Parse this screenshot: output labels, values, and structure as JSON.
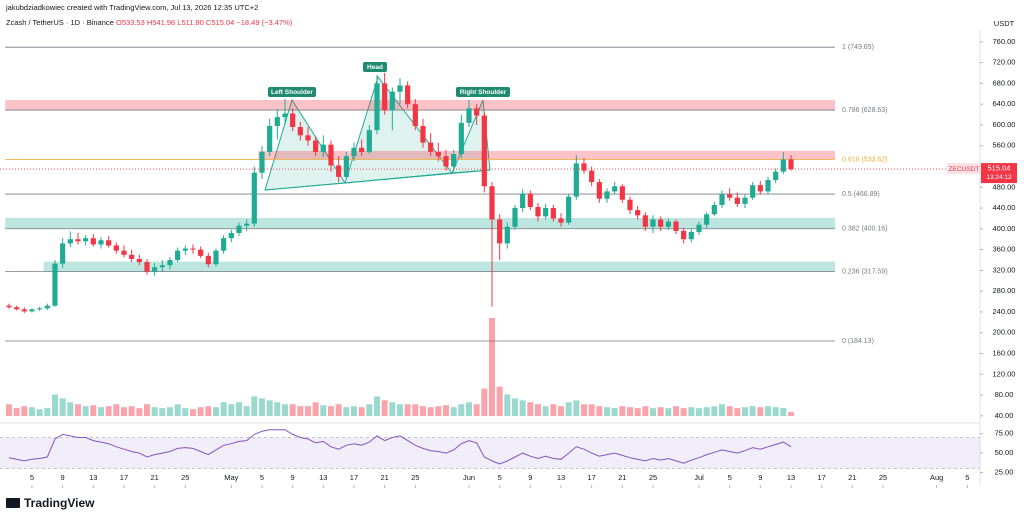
{
  "chart_data": {
    "type": "candlestick",
    "author_line": "jakubdziadkowiec created with TradingView.com, Jul 13, 2026 12:35 UTC+2",
    "symbol_line": "Zcash / TetherUS · 1D · Binance",
    "ohlc_line": "O533.53 H541.96 L511.80 C515.04 −18.49 (−3.47%)",
    "currency": "USDT",
    "symbol": "ZECUSDT",
    "last_price": 515.04,
    "last_price_label": "515.04",
    "countdown": "13:24:12",
    "brand": "TradingView",
    "up_color": "#22ab94",
    "down_color": "#f23645",
    "ylim": [
      32,
      802
    ],
    "yticks": [
      {
        "value": 760,
        "label": "760.00"
      },
      {
        "value": 720,
        "label": "720.00"
      },
      {
        "value": 680,
        "label": "680.00"
      },
      {
        "value": 640,
        "label": "640.00"
      },
      {
        "value": 600,
        "label": "600.00"
      },
      {
        "value": 560,
        "label": "560.00"
      },
      {
        "value": 480,
        "label": "480.00"
      },
      {
        "value": 440,
        "label": "440.00"
      },
      {
        "value": 400,
        "label": "400.00"
      },
      {
        "value": 360,
        "label": "360.00"
      },
      {
        "value": 320,
        "label": "320.00"
      },
      {
        "value": 280,
        "label": "280.00"
      },
      {
        "value": 240,
        "label": "240.00"
      },
      {
        "value": 200,
        "label": "200.00"
      },
      {
        "value": 160,
        "label": "160.00"
      },
      {
        "value": 120,
        "label": "120.00"
      },
      {
        "value": 80,
        "label": "80.00"
      },
      {
        "value": 40,
        "label": "40.00"
      }
    ],
    "xticks": [
      {
        "value": 4,
        "label": "5"
      },
      {
        "value": 8,
        "label": "9"
      },
      {
        "value": 12,
        "label": "13"
      },
      {
        "value": 16,
        "label": "17"
      },
      {
        "value": 20,
        "label": "21"
      },
      {
        "value": 24,
        "label": "25"
      },
      {
        "value": 30,
        "label": "May"
      },
      {
        "value": 34,
        "label": "5"
      },
      {
        "value": 38,
        "label": "9"
      },
      {
        "value": 42,
        "label": "13"
      },
      {
        "value": 46,
        "label": "17"
      },
      {
        "value": 50,
        "label": "21"
      },
      {
        "value": 54,
        "label": "25"
      },
      {
        "value": 61,
        "label": "Jun"
      },
      {
        "value": 65,
        "label": "5"
      },
      {
        "value": 69,
        "label": "9"
      },
      {
        "value": 73,
        "label": "13"
      },
      {
        "value": 77,
        "label": "17"
      },
      {
        "value": 81,
        "label": "21"
      },
      {
        "value": 85,
        "label": "25"
      },
      {
        "value": 91,
        "label": "Jul"
      },
      {
        "value": 95,
        "label": "5"
      },
      {
        "value": 99,
        "label": "9"
      },
      {
        "value": 103,
        "label": "13"
      },
      {
        "value": 107,
        "label": "17"
      },
      {
        "value": 111,
        "label": "21"
      },
      {
        "value": 115,
        "label": "25"
      },
      {
        "value": 122,
        "label": "Aug"
      },
      {
        "value": 126,
        "label": "5"
      }
    ],
    "candles": [
      [
        252,
        256,
        246,
        249
      ],
      [
        249,
        252,
        243,
        245
      ],
      [
        245,
        249,
        238,
        241
      ],
      [
        241,
        247,
        239,
        245
      ],
      [
        245,
        250,
        242,
        247
      ],
      [
        247,
        256,
        244,
        252
      ],
      [
        252,
        340,
        250,
        333
      ],
      [
        333,
        382,
        325,
        372
      ],
      [
        372,
        395,
        365,
        380
      ],
      [
        380,
        392,
        370,
        376
      ],
      [
        376,
        388,
        368,
        382
      ],
      [
        382,
        390,
        366,
        370
      ],
      [
        370,
        384,
        362,
        378
      ],
      [
        378,
        386,
        364,
        368
      ],
      [
        368,
        374,
        352,
        358
      ],
      [
        358,
        368,
        345,
        350
      ],
      [
        350,
        360,
        336,
        342
      ],
      [
        342,
        350,
        330,
        336
      ],
      [
        336,
        342,
        312,
        318
      ],
      [
        318,
        334,
        310,
        326
      ],
      [
        326,
        340,
        318,
        330
      ],
      [
        330,
        346,
        322,
        340
      ],
      [
        340,
        364,
        336,
        358
      ],
      [
        358,
        368,
        350,
        362
      ],
      [
        362,
        370,
        352,
        360
      ],
      [
        360,
        366,
        344,
        348
      ],
      [
        348,
        354,
        326,
        332
      ],
      [
        332,
        362,
        328,
        358
      ],
      [
        358,
        388,
        352,
        382
      ],
      [
        382,
        398,
        374,
        392
      ],
      [
        392,
        412,
        386,
        406
      ],
      [
        406,
        418,
        396,
        410
      ],
      [
        410,
        520,
        404,
        508
      ],
      [
        508,
        560,
        496,
        548
      ],
      [
        548,
        612,
        540,
        598
      ],
      [
        598,
        630,
        572,
        615
      ],
      [
        615,
        650,
        600,
        622
      ],
      [
        622,
        632,
        588,
        596
      ],
      [
        596,
        606,
        570,
        580
      ],
      [
        580,
        596,
        560,
        570
      ],
      [
        570,
        578,
        540,
        548
      ],
      [
        548,
        580,
        538,
        562
      ],
      [
        562,
        570,
        510,
        522
      ],
      [
        522,
        540,
        490,
        500
      ],
      [
        500,
        548,
        496,
        540
      ],
      [
        540,
        566,
        530,
        556
      ],
      [
        556,
        572,
        540,
        548
      ],
      [
        548,
        600,
        544,
        590
      ],
      [
        590,
        696,
        582,
        680
      ],
      [
        680,
        700,
        620,
        628
      ],
      [
        628,
        672,
        590,
        664
      ],
      [
        664,
        690,
        640,
        676
      ],
      [
        676,
        684,
        632,
        640
      ],
      [
        640,
        650,
        590,
        598
      ],
      [
        598,
        612,
        556,
        566
      ],
      [
        566,
        584,
        540,
        548
      ],
      [
        548,
        566,
        530,
        540
      ],
      [
        540,
        552,
        512,
        520
      ],
      [
        520,
        552,
        510,
        544
      ],
      [
        544,
        620,
        536,
        604
      ],
      [
        604,
        648,
        596,
        632
      ],
      [
        632,
        640,
        600,
        618
      ],
      [
        618,
        624,
        470,
        482
      ],
      [
        482,
        490,
        250,
        418
      ],
      [
        418,
        428,
        340,
        372
      ],
      [
        372,
        412,
        362,
        404
      ],
      [
        404,
        446,
        398,
        440
      ],
      [
        440,
        476,
        432,
        468
      ],
      [
        468,
        474,
        436,
        442
      ],
      [
        442,
        450,
        414,
        424
      ],
      [
        424,
        448,
        418,
        440
      ],
      [
        440,
        446,
        414,
        420
      ],
      [
        420,
        430,
        404,
        412
      ],
      [
        412,
        468,
        408,
        462
      ],
      [
        462,
        542,
        456,
        526
      ],
      [
        526,
        536,
        506,
        512
      ],
      [
        512,
        520,
        482,
        490
      ],
      [
        490,
        496,
        450,
        458
      ],
      [
        458,
        478,
        450,
        472
      ],
      [
        472,
        490,
        466,
        482
      ],
      [
        482,
        486,
        450,
        456
      ],
      [
        456,
        462,
        428,
        436
      ],
      [
        436,
        444,
        418,
        426
      ],
      [
        426,
        432,
        396,
        404
      ],
      [
        404,
        426,
        392,
        418
      ],
      [
        418,
        424,
        396,
        404
      ],
      [
        404,
        420,
        398,
        414
      ],
      [
        414,
        418,
        390,
        396
      ],
      [
        396,
        402,
        372,
        380
      ],
      [
        380,
        400,
        374,
        394
      ],
      [
        394,
        414,
        388,
        408
      ],
      [
        408,
        432,
        402,
        428
      ],
      [
        428,
        452,
        424,
        446
      ],
      [
        446,
        474,
        440,
        466
      ],
      [
        466,
        478,
        454,
        460
      ],
      [
        460,
        470,
        442,
        448
      ],
      [
        448,
        466,
        440,
        460
      ],
      [
        460,
        490,
        456,
        484
      ],
      [
        484,
        492,
        466,
        472
      ],
      [
        472,
        500,
        468,
        494
      ],
      [
        494,
        516,
        488,
        510
      ],
      [
        510,
        548,
        506,
        533.53
      ],
      [
        533.53,
        541.96,
        511.8,
        515.04
      ]
    ],
    "volume": [
      12,
      8,
      10,
      9,
      7,
      8,
      22,
      18,
      14,
      12,
      10,
      11,
      9,
      10,
      12,
      9,
      10,
      8,
      12,
      9,
      8,
      9,
      12,
      8,
      7,
      9,
      10,
      9,
      14,
      12,
      14,
      10,
      20,
      18,
      16,
      14,
      12,
      12,
      10,
      10,
      14,
      11,
      10,
      12,
      9,
      10,
      9,
      12,
      20,
      16,
      14,
      12,
      12,
      12,
      10,
      9,
      10,
      11,
      9,
      12,
      14,
      12,
      28,
      100,
      30,
      22,
      18,
      16,
      14,
      12,
      10,
      12,
      10,
      14,
      16,
      12,
      12,
      10,
      9,
      8,
      10,
      9,
      8,
      10,
      8,
      9,
      8,
      10,
      8,
      9,
      8,
      9,
      10,
      12,
      10,
      8,
      9,
      10,
      9,
      10,
      9,
      8,
      4
    ],
    "rsi": [
      44,
      42,
      40,
      42,
      43,
      45,
      68,
      74,
      72,
      70,
      70,
      66,
      64,
      62,
      58,
      55,
      52,
      50,
      45,
      48,
      50,
      52,
      56,
      57,
      56,
      52,
      48,
      54,
      60,
      62,
      65,
      66,
      74,
      78,
      80,
      80,
      80,
      74,
      70,
      68,
      63,
      65,
      58,
      55,
      60,
      62,
      60,
      64,
      72,
      66,
      70,
      72,
      66,
      60,
      56,
      53,
      52,
      50,
      54,
      62,
      66,
      63,
      45,
      40,
      36,
      40,
      45,
      50,
      46,
      43,
      46,
      43,
      42,
      50,
      58,
      55,
      50,
      46,
      48,
      50,
      47,
      44,
      42,
      40,
      43,
      41,
      43,
      40,
      37,
      41,
      44,
      48,
      51,
      54,
      52,
      50,
      53,
      57,
      55,
      58,
      61,
      64,
      58
    ],
    "rsi_color": "#7e57c2",
    "rsi_ylim": [
      18,
      86
    ],
    "rsi_band": [
      30,
      70
    ],
    "rsi_yticks": [
      {
        "value": 75,
        "label": "75.00"
      },
      {
        "value": 50,
        "label": "50.00"
      },
      {
        "value": 25,
        "label": "25.00"
      }
    ],
    "fib_levels": [
      {
        "price": 749.65,
        "label": "1 (749.65)",
        "color": "#787b86"
      },
      {
        "price": 628.63,
        "label": "0.786 (628.63)",
        "color": "#787b86"
      },
      {
        "price": 533.62,
        "label": "0.618 (533.62)",
        "color": "#f0b040"
      },
      {
        "price": 466.89,
        "label": "0.5 (466.89)",
        "color": "#787b86"
      },
      {
        "price": 400.16,
        "label": "0.382 (400.16)",
        "color": "#787b86"
      },
      {
        "price": 317.59,
        "label": "0.236 (317.59)",
        "color": "#787b86"
      },
      {
        "price": 184.13,
        "label": "0 (184.13)",
        "color": "#787b86"
      }
    ],
    "zones": [
      {
        "top": 648,
        "bottom": 628.63,
        "from": 0,
        "color": "rgba(242,54,69,0.3)"
      },
      {
        "top": 550,
        "bottom": 533.62,
        "from": 33,
        "color": "rgba(242,54,69,0.3)"
      },
      {
        "top": 421,
        "bottom": 400.16,
        "from": 0,
        "color": "rgba(34,171,148,0.3)"
      },
      {
        "top": 337,
        "bottom": 317.59,
        "from": 5,
        "color": "rgba(34,171,148,0.3)"
      }
    ],
    "annotations": [
      "Left Shoulder",
      "Head",
      "Right Shoulder"
    ]
  }
}
